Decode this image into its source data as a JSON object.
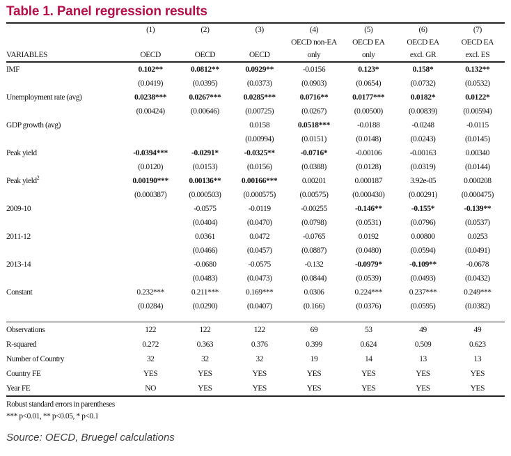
{
  "title": "Table 1. Panel regression results",
  "table": {
    "variables_label": "VARIABLES",
    "columns": [
      {
        "num": "(1)",
        "top": "",
        "bottom": "OECD"
      },
      {
        "num": "(2)",
        "top": "",
        "bottom": "OECD"
      },
      {
        "num": "(3)",
        "top": "",
        "bottom": "OECD"
      },
      {
        "num": "(4)",
        "top": "OECD non-EA",
        "bottom": "only"
      },
      {
        "num": "(5)",
        "top": "OECD EA",
        "bottom": "only"
      },
      {
        "num": "(6)",
        "top": "OECD EA",
        "bottom": "excl. GR"
      },
      {
        "num": "(7)",
        "top": "OECD EA",
        "bottom": "excl. ES"
      }
    ],
    "coefficient_rows": [
      {
        "label": "IMF",
        "sup": "",
        "coefs": [
          "0.102**",
          "0.0812**",
          "0.0929**",
          "-0.0156",
          "0.123*",
          "0.158*",
          "0.132**"
        ],
        "bold": [
          true,
          true,
          true,
          false,
          true,
          true,
          true
        ],
        "ses": [
          "(0.0419)",
          "(0.0395)",
          "(0.0373)",
          "(0.0903)",
          "(0.0654)",
          "(0.0732)",
          "(0.0532)"
        ]
      },
      {
        "label": "Unemployment rate (avg)",
        "sup": "",
        "coefs": [
          "0.0238***",
          "0.0267***",
          "0.0285***",
          "0.0716**",
          "0.0177***",
          "0.0182*",
          "0.0122*"
        ],
        "bold": [
          true,
          true,
          true,
          true,
          true,
          true,
          true
        ],
        "ses": [
          "(0.00424)",
          "(0.00646)",
          "(0.00725)",
          "(0.0267)",
          "(0.00500)",
          "(0.00839)",
          "(0.00594)"
        ]
      },
      {
        "label": "GDP growth (avg)",
        "sup": "",
        "coefs": [
          "",
          "",
          "0.0158",
          "0.0518***",
          "-0.0188",
          "-0.0248",
          "-0.0115"
        ],
        "bold": [
          false,
          false,
          false,
          true,
          false,
          false,
          false
        ],
        "ses": [
          "",
          "",
          "(0.00994)",
          "(0.0151)",
          "(0.0148)",
          "(0.0243)",
          "(0.0145)"
        ]
      },
      {
        "label": "Peak yield",
        "sup": "",
        "coefs": [
          "-0.0394***",
          "-0.0291*",
          "-0.0325**",
          "-0.0716*",
          "-0.00106",
          "-0.00163",
          "0.00340"
        ],
        "bold": [
          true,
          true,
          true,
          true,
          false,
          false,
          false
        ],
        "ses": [
          "(0.0120)",
          "(0.0153)",
          "(0.0156)",
          "(0.0388)",
          "(0.0128)",
          "(0.0319)",
          "(0.0144)"
        ]
      },
      {
        "label": "Peak yield",
        "sup": "2",
        "coefs": [
          "0.00190***",
          "0.00136**",
          "0.00166***",
          "0.00201",
          "0.000187",
          "3.92e-05",
          "0.000208"
        ],
        "bold": [
          true,
          true,
          true,
          false,
          false,
          false,
          false
        ],
        "ses": [
          "(0.000387)",
          "(0.000503)",
          "(0.000575)",
          "(0.00575)",
          "(0.000430)",
          "(0.00291)",
          "(0.000475)"
        ]
      },
      {
        "label": "2009-10",
        "sup": "",
        "coefs": [
          "",
          "-0.0575",
          "-0.0119",
          "-0.00255",
          "-0.146**",
          "-0.155*",
          "-0.139**"
        ],
        "bold": [
          false,
          false,
          false,
          false,
          true,
          true,
          true
        ],
        "ses": [
          "",
          "(0.0404)",
          "(0.0470)",
          "(0.0798)",
          "(0.0531)",
          "(0.0796)",
          "(0.0537)"
        ]
      },
      {
        "label": "2011-12",
        "sup": "",
        "coefs": [
          "",
          "0.0361",
          "0.0472",
          "-0.0765",
          "0.0192",
          "0.00800",
          "0.0253"
        ],
        "bold": [
          false,
          false,
          false,
          false,
          false,
          false,
          false
        ],
        "ses": [
          "",
          "(0.0466)",
          "(0.0457)",
          "(0.0887)",
          "(0.0480)",
          "(0.0594)",
          "(0.0491)"
        ]
      },
      {
        "label": "2013-14",
        "sup": "",
        "coefs": [
          "",
          "-0.0680",
          "-0.0575",
          "-0.132",
          "-0.0979*",
          "-0.109**",
          "-0.0678"
        ],
        "bold": [
          false,
          false,
          false,
          false,
          true,
          true,
          false
        ],
        "ses": [
          "",
          "(0.0483)",
          "(0.0473)",
          "(0.0844)",
          "(0.0539)",
          "(0.0493)",
          "(0.0432)"
        ]
      },
      {
        "label": "Constant",
        "sup": "",
        "coefs": [
          "0.232***",
          "0.211***",
          "0.169***",
          "0.0306",
          "0.224***",
          "0.237***",
          "0.249***"
        ],
        "bold": [
          false,
          false,
          false,
          false,
          false,
          false,
          false
        ],
        "ses": [
          "(0.0284)",
          "(0.0290)",
          "(0.0407)",
          "(0.166)",
          "(0.0376)",
          "(0.0595)",
          "(0.0382)"
        ]
      }
    ],
    "stats_rows": [
      {
        "label": "Observations",
        "values": [
          "122",
          "122",
          "122",
          "69",
          "53",
          "49",
          "49"
        ]
      },
      {
        "label": "R-squared",
        "values": [
          "0.272",
          "0.363",
          "0.376",
          "0.399",
          "0.624",
          "0.509",
          "0.623"
        ]
      },
      {
        "label": "Number of Country",
        "values": [
          "32",
          "32",
          "32",
          "19",
          "14",
          "13",
          "13"
        ]
      },
      {
        "label": "Country FE",
        "values": [
          "YES",
          "YES",
          "YES",
          "YES",
          "YES",
          "YES",
          "YES"
        ]
      },
      {
        "label": "Year FE",
        "values": [
          "NO",
          "YES",
          "YES",
          "YES",
          "YES",
          "YES",
          "YES"
        ]
      }
    ]
  },
  "notes": {
    "line1": "Robust standard errors in parentheses",
    "line2": "*** p<0.01, ** p<0.05, * p<0.1"
  },
  "source": "Source: OECD, Bruegel calculations",
  "colors": {
    "title": "#b5104a",
    "rule": "#242424",
    "text": "#151515"
  }
}
